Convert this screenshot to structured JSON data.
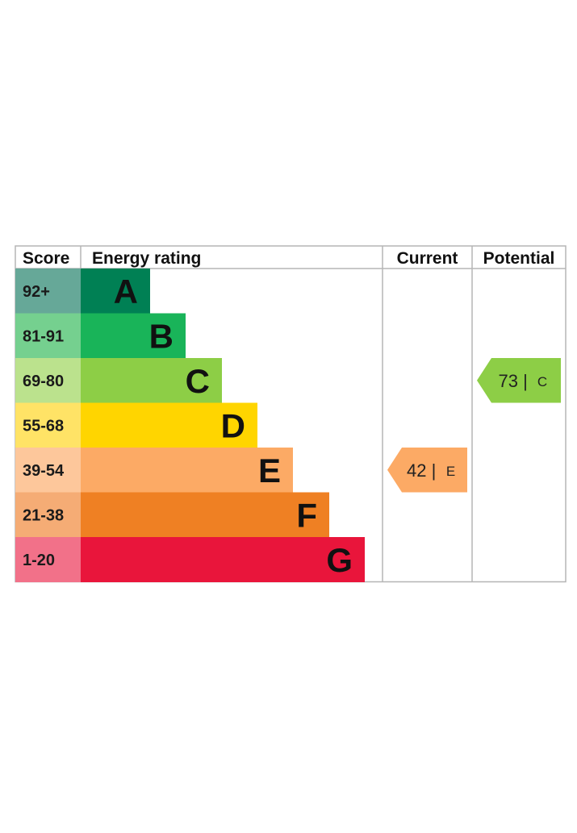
{
  "chart_data": {
    "type": "bar",
    "headers": {
      "score": "Score",
      "rating": "Energy rating",
      "current": "Current",
      "potential": "Potential"
    },
    "bands": [
      {
        "letter": "A",
        "range": "92+",
        "color": "#008054",
        "score_bg": "#66a898"
      },
      {
        "letter": "B",
        "range": "81-91",
        "color": "#19b459",
        "score_bg": "#75d08f"
      },
      {
        "letter": "C",
        "range": "69-80",
        "color": "#8dce46",
        "score_bg": "#bbe28d"
      },
      {
        "letter": "D",
        "range": "55-68",
        "color": "#ffd500",
        "score_bg": "#ffe366"
      },
      {
        "letter": "E",
        "range": "39-54",
        "color": "#fcaa65",
        "score_bg": "#fdc79b"
      },
      {
        "letter": "F",
        "range": "21-38",
        "color": "#ef8023",
        "score_bg": "#f5ac75"
      },
      {
        "letter": "G",
        "range": "1-20",
        "color": "#e9153b",
        "score_bg": "#f27189"
      }
    ],
    "current": {
      "value": 42,
      "band": "E",
      "separator": "|",
      "color": "#fcaa65"
    },
    "potential": {
      "value": 73,
      "band": "C",
      "separator": "|",
      "color": "#8dce46"
    }
  }
}
